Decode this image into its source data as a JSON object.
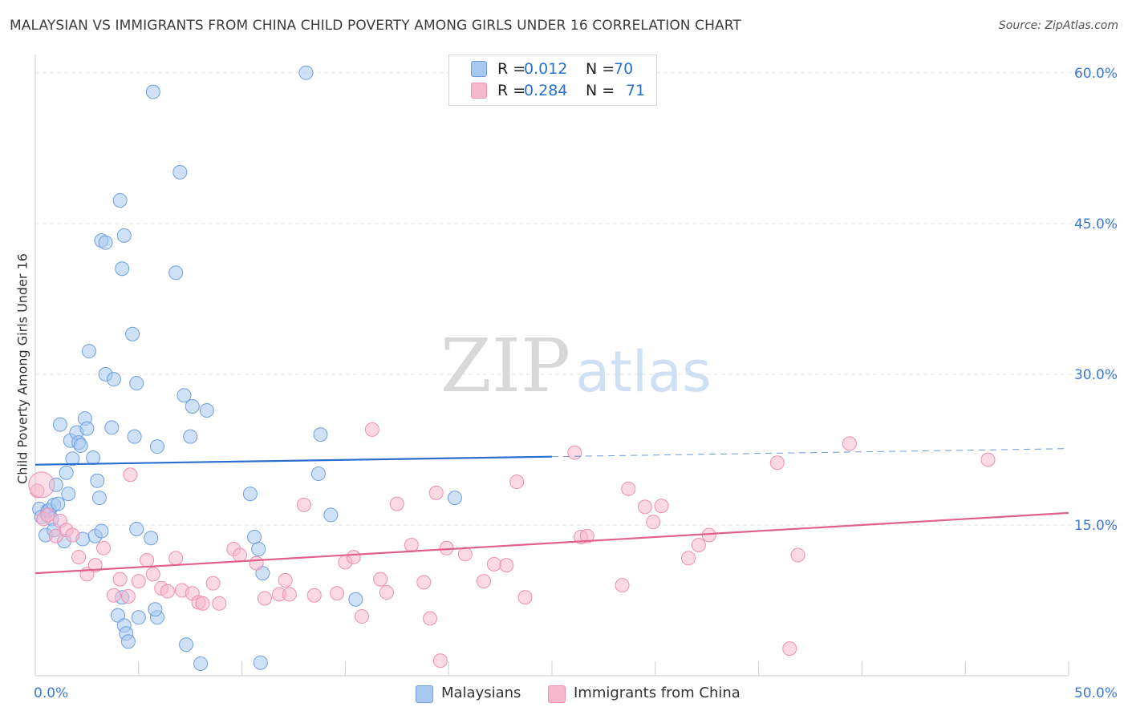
{
  "title": "MALAYSIAN VS IMMIGRANTS FROM CHINA CHILD POVERTY AMONG GIRLS UNDER 16 CORRELATION CHART",
  "source": "Source: ZipAtlas.com",
  "watermark": {
    "zip": "ZIP",
    "atlas": "atlas"
  },
  "stats": [
    {
      "r_label": "R =",
      "r_value": "0.012",
      "n_label": "N =",
      "n_value": "70",
      "color": "#a8c8f0"
    },
    {
      "r_label": "R =",
      "r_value": "0.284",
      "n_label": "N =",
      "n_value": "71",
      "color": "#f6b8cd"
    }
  ],
  "legend": [
    {
      "label": "Malaysians",
      "color": "#a8c8f0"
    },
    {
      "label": "Immigrants from China",
      "color": "#f6b8cd"
    }
  ],
  "chart_data": {
    "type": "scatter",
    "title": "MALAYSIAN VS IMMIGRANTS FROM CHINA CHILD POVERTY AMONG GIRLS UNDER 16 CORRELATION CHART",
    "xlabel": "",
    "ylabel": "Child Poverty Among Girls Under 16",
    "xlim": [
      0,
      50
    ],
    "ylim": [
      0,
      61.5
    ],
    "x_tick_labels": [
      {
        "value": 0,
        "label": "0.0%"
      },
      {
        "value": 50,
        "label": "50.0%"
      }
    ],
    "y_tick_labels": [
      {
        "value": 15,
        "label": "15.0%"
      },
      {
        "value": 30,
        "label": "30.0%"
      },
      {
        "value": 45,
        "label": "45.0%"
      },
      {
        "value": 60,
        "label": "60.0%"
      }
    ],
    "x_minor_ticks": [
      5,
      10,
      15,
      20,
      25,
      30,
      35,
      40,
      45,
      50
    ],
    "grid": "horizontal dashed",
    "series": [
      {
        "name": "Malaysians",
        "color": "#a8c8f0",
        "stroke": "#6f9fe0",
        "trend": {
          "x0": 0,
          "y0": 21.0,
          "x1": 25,
          "y1": 21.8,
          "x_dash_end": 50,
          "y_dash_end": 22.6,
          "color": "#2a6fd0"
        },
        "points": [
          [
            0.2,
            16.6
          ],
          [
            0.3,
            15.8
          ],
          [
            0.5,
            14.0
          ],
          [
            0.6,
            16.4
          ],
          [
            0.7,
            16.5
          ],
          [
            0.8,
            15.6
          ],
          [
            0.9,
            17.0
          ],
          [
            1.0,
            19.0
          ],
          [
            1.1,
            17.1
          ],
          [
            1.2,
            25.0
          ],
          [
            1.4,
            13.4
          ],
          [
            1.5,
            20.2
          ],
          [
            1.6,
            18.1
          ],
          [
            1.7,
            23.4
          ],
          [
            1.8,
            21.6
          ],
          [
            2.0,
            24.2
          ],
          [
            2.1,
            23.2
          ],
          [
            2.2,
            22.9
          ],
          [
            2.3,
            13.6
          ],
          [
            2.4,
            25.6
          ],
          [
            2.5,
            24.6
          ],
          [
            2.8,
            21.7
          ],
          [
            2.9,
            13.9
          ],
          [
            3.0,
            19.4
          ],
          [
            3.1,
            17.7
          ],
          [
            3.2,
            14.4
          ],
          [
            3.4,
            30.0
          ],
          [
            3.7,
            24.7
          ],
          [
            3.8,
            29.5
          ],
          [
            2.6,
            32.3
          ],
          [
            3.2,
            43.3
          ],
          [
            3.4,
            43.1
          ],
          [
            4.1,
            47.3
          ],
          [
            4.3,
            43.8
          ],
          [
            4.7,
            34.0
          ],
          [
            4.9,
            29.1
          ],
          [
            4.2,
            40.5
          ],
          [
            5.7,
            58.1
          ],
          [
            4.8,
            23.8
          ],
          [
            5.9,
            22.8
          ],
          [
            5.6,
            13.7
          ],
          [
            4.9,
            14.6
          ],
          [
            5.9,
            5.8
          ],
          [
            6.8,
            40.1
          ],
          [
            7.0,
            50.1
          ],
          [
            7.2,
            27.9
          ],
          [
            7.6,
            26.8
          ],
          [
            7.5,
            23.8
          ],
          [
            8.3,
            26.4
          ],
          [
            10.4,
            18.1
          ],
          [
            10.6,
            13.8
          ],
          [
            10.8,
            12.6
          ],
          [
            11.0,
            10.2
          ],
          [
            13.1,
            60.0
          ],
          [
            13.8,
            24.0
          ],
          [
            13.7,
            20.1
          ],
          [
            14.3,
            16.0
          ],
          [
            15.5,
            7.6
          ],
          [
            20.3,
            17.7
          ],
          [
            4.0,
            6.0
          ],
          [
            4.3,
            5.0
          ],
          [
            4.4,
            4.2
          ],
          [
            4.5,
            3.4
          ],
          [
            5.0,
            5.8
          ],
          [
            5.8,
            6.6
          ],
          [
            7.3,
            3.1
          ],
          [
            8.0,
            1.2
          ],
          [
            10.9,
            1.3
          ],
          [
            4.2,
            7.8
          ],
          [
            0.9,
            14.5
          ]
        ]
      },
      {
        "name": "Immigrants from China",
        "color": "#f6b8cd",
        "stroke": "#ec8fb0",
        "trend": {
          "x0": 0,
          "y0": 10.2,
          "x1": 50,
          "y1": 16.2,
          "color": "#e0608e"
        },
        "points": [
          [
            0.1,
            18.4
          ],
          [
            0.4,
            15.6
          ],
          [
            0.6,
            16.0
          ],
          [
            1.0,
            13.9
          ],
          [
            1.2,
            15.4
          ],
          [
            1.5,
            14.5
          ],
          [
            1.8,
            14.0
          ],
          [
            2.1,
            11.8
          ],
          [
            2.5,
            10.1
          ],
          [
            2.9,
            11.0
          ],
          [
            3.3,
            12.7
          ],
          [
            3.8,
            8.0
          ],
          [
            4.1,
            9.6
          ],
          [
            4.5,
            7.9
          ],
          [
            4.6,
            20.0
          ],
          [
            5.0,
            9.4
          ],
          [
            5.4,
            11.5
          ],
          [
            5.7,
            10.1
          ],
          [
            6.1,
            8.7
          ],
          [
            6.4,
            8.4
          ],
          [
            6.8,
            11.7
          ],
          [
            7.1,
            8.5
          ],
          [
            7.6,
            8.2
          ],
          [
            7.9,
            7.3
          ],
          [
            8.1,
            7.2
          ],
          [
            8.6,
            9.2
          ],
          [
            8.9,
            7.2
          ],
          [
            9.6,
            12.6
          ],
          [
            9.9,
            12.0
          ],
          [
            10.7,
            11.2
          ],
          [
            11.1,
            7.7
          ],
          [
            11.8,
            8.1
          ],
          [
            12.1,
            9.5
          ],
          [
            12.3,
            8.1
          ],
          [
            13.0,
            17.0
          ],
          [
            13.5,
            8.0
          ],
          [
            14.6,
            8.2
          ],
          [
            15.0,
            11.3
          ],
          [
            15.4,
            11.8
          ],
          [
            15.8,
            5.9
          ],
          [
            16.3,
            24.5
          ],
          [
            16.7,
            9.6
          ],
          [
            17.0,
            8.3
          ],
          [
            17.5,
            17.1
          ],
          [
            18.2,
            13.0
          ],
          [
            18.8,
            9.3
          ],
          [
            19.1,
            5.7
          ],
          [
            19.4,
            18.2
          ],
          [
            19.6,
            1.5
          ],
          [
            19.9,
            12.7
          ],
          [
            20.8,
            12.1
          ],
          [
            21.7,
            9.4
          ],
          [
            22.2,
            11.1
          ],
          [
            22.8,
            11.0
          ],
          [
            23.3,
            19.3
          ],
          [
            23.7,
            7.8
          ],
          [
            26.1,
            22.2
          ],
          [
            26.4,
            13.8
          ],
          [
            26.7,
            13.9
          ],
          [
            28.4,
            9.0
          ],
          [
            28.7,
            18.6
          ],
          [
            29.5,
            16.8
          ],
          [
            29.9,
            15.3
          ],
          [
            30.3,
            16.9
          ],
          [
            31.6,
            11.7
          ],
          [
            32.1,
            13.0
          ],
          [
            32.6,
            14.0
          ],
          [
            35.9,
            21.2
          ],
          [
            36.9,
            12.0
          ],
          [
            39.4,
            23.1
          ],
          [
            46.1,
            21.5
          ]
        ],
        "extra_points": [
          [
            36.5,
            2.7
          ]
        ]
      }
    ]
  }
}
